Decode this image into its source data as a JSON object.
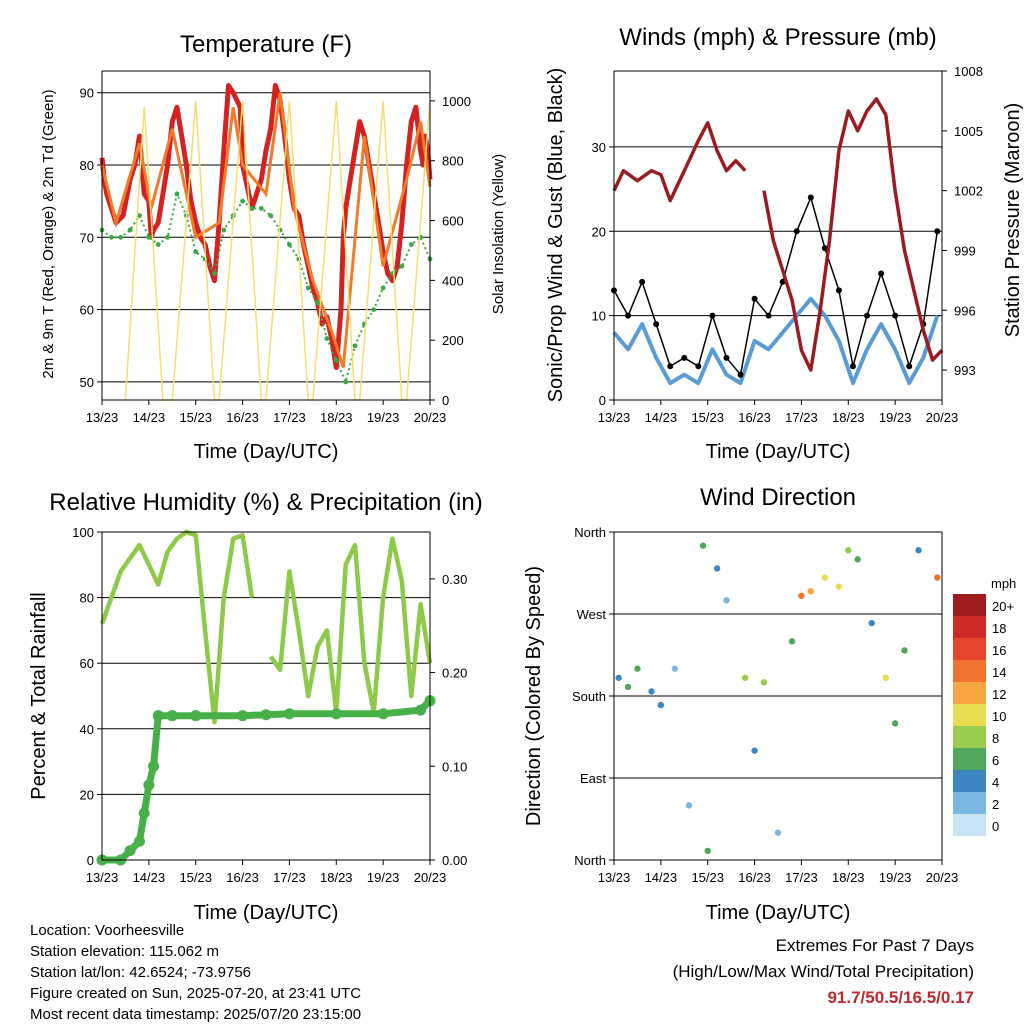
{
  "colors": {
    "temp2m": "#d42222",
    "temp9m": "#f07b2a",
    "dewpoint": "#3aa845",
    "solar": "#f5dd6f",
    "wind": "#5b9bd5",
    "gust": "#000000",
    "pressure": "#9b1c20",
    "rh": "#8ec94a",
    "precip": "#48b048",
    "grid": "#000000",
    "extremes": "#c0282d"
  },
  "panels": {
    "temperature": {
      "title": "Temperature (F)",
      "xlabel": "Time (Day/UTC)",
      "ylabel_left": "2m & 9m T (Red, Orange) & 2m Td (Green)",
      "ylabel_right": "Solar Insolation (Yellow)"
    },
    "winds": {
      "title": "Winds (mph) & Pressure (mb)",
      "xlabel": "Time (Day/UTC)",
      "ylabel_left": "Sonic/Prop Wind & Gust (Blue, Black)",
      "ylabel_right": "Station Pressure (Maroon)"
    },
    "humidity": {
      "title": "Relative Humidity (%) & Precipitation (in)",
      "xlabel": "Time (Day/UTC)",
      "ylabel_left": "Percent & Total Rainfall"
    },
    "direction": {
      "title": "Wind Direction",
      "xlabel": "Time (Day/UTC)",
      "ylabel_left": "Direction (Colored By Speed)",
      "legend_unit": "mph",
      "legend_labels": [
        "20+",
        "18",
        "16",
        "14",
        "12",
        "10",
        "8",
        "6",
        "4",
        "2",
        "0"
      ],
      "legend_colors": [
        "#a01c1c",
        "#cf2a27",
        "#e6452b",
        "#f0732f",
        "#f7a540",
        "#e8dc4f",
        "#98cc4d",
        "#4fa75c",
        "#3c86c2",
        "#7ab6e2",
        "#c6e4f5"
      ]
    }
  },
  "chart_data": [
    {
      "type": "line",
      "title": "Temperature (F)",
      "xlabel": "Time (Day/UTC)",
      "ylabel": "2m & 9m T (Red, Orange) & 2m Td (Green)",
      "y2label": "Solar Insolation (Yellow)",
      "x_ticks": [
        "13/23",
        "14/23",
        "15/23",
        "16/23",
        "17/23",
        "18/23",
        "19/23",
        "20/23"
      ],
      "y_ticks": [
        50,
        60,
        70,
        80,
        90
      ],
      "y2_ticks": [
        0,
        200,
        400,
        600,
        800,
        1000
      ],
      "xlim": [
        0,
        7
      ],
      "ylim": [
        47.5,
        93
      ],
      "y2lim": [
        0,
        1100
      ],
      "grid": true,
      "series": [
        {
          "name": "2m T",
          "axis": "left",
          "x": [
            0,
            0.05,
            0.1,
            0.2,
            0.3,
            0.45,
            0.6,
            0.7,
            0.8,
            0.9,
            1.0,
            1.05,
            1.1,
            1.2,
            1.3,
            1.4,
            1.5,
            1.6,
            1.7,
            1.8,
            1.9,
            2.0,
            2.1,
            2.2,
            2.3,
            2.4,
            2.5,
            2.6,
            2.7,
            2.8,
            2.95,
            3.0,
            3.1,
            3.2,
            3.3,
            3.4,
            3.5,
            3.6,
            3.7,
            3.8,
            3.9,
            4.0,
            4.1,
            4.2,
            4.3,
            4.4,
            4.5,
            4.6,
            4.7,
            4.8,
            4.9,
            5.0,
            5.1,
            5.15,
            5.2,
            5.3,
            5.4,
            5.5,
            5.6,
            5.7,
            5.8,
            5.9,
            6.0,
            6.1,
            6.2,
            6.3,
            6.4,
            6.5,
            6.6,
            6.7,
            6.8,
            6.85,
            6.9,
            6.95,
            7.0
          ],
          "y": [
            81,
            78,
            76,
            74,
            72,
            73,
            78,
            80,
            84,
            76,
            75,
            70,
            71,
            72,
            76,
            80,
            86,
            88,
            84,
            80,
            75,
            72,
            70,
            69,
            66,
            64,
            72,
            82,
            91,
            90,
            88,
            80,
            77,
            74,
            76,
            78,
            82,
            85,
            91,
            89,
            84,
            78,
            74,
            73,
            69,
            66,
            63,
            61,
            58,
            59,
            56,
            52,
            60,
            70,
            74,
            78,
            82,
            86,
            84,
            80,
            76,
            72,
            68,
            65,
            64,
            66,
            72,
            80,
            86,
            88,
            82,
            80,
            84,
            82,
            78
          ]
        },
        {
          "name": "9m T",
          "axis": "left",
          "x": [
            0,
            0.3,
            0.8,
            1.05,
            1.5,
            2.0,
            2.5,
            2.8,
            3.0,
            3.5,
            3.8,
            4.1,
            4.5,
            4.9,
            5.15,
            5.6,
            6.0,
            6.5,
            6.8,
            7.0
          ],
          "y": [
            80,
            72,
            83,
            74,
            85,
            70,
            72,
            88,
            80,
            76,
            90,
            74,
            64,
            57,
            52,
            84,
            66,
            78,
            86,
            77
          ]
        },
        {
          "name": "2m Td",
          "axis": "left",
          "x": [
            0,
            0.2,
            0.4,
            0.6,
            0.8,
            1.0,
            1.2,
            1.4,
            1.6,
            1.8,
            2.0,
            2.2,
            2.4,
            2.6,
            2.8,
            3.0,
            3.2,
            3.4,
            3.6,
            3.8,
            4.0,
            4.2,
            4.4,
            4.6,
            4.8,
            5.0,
            5.2,
            5.4,
            5.6,
            5.8,
            6.0,
            6.2,
            6.4,
            6.6,
            6.8,
            7.0
          ],
          "y": [
            71,
            70,
            70,
            71,
            73,
            70,
            69,
            70,
            76,
            73,
            68,
            67,
            65,
            71,
            73,
            75,
            74,
            74,
            73,
            71,
            69,
            67,
            63,
            61,
            56,
            53,
            50,
            55,
            58,
            60,
            63,
            65,
            66,
            69,
            70,
            67
          ]
        },
        {
          "name": "Solar Insolation",
          "axis": "right",
          "x": [
            0.5,
            0.9,
            1.3,
            1.5,
            2.0,
            2.4,
            2.5,
            3.0,
            3.4,
            3.5,
            4.0,
            4.4,
            4.5,
            5.0,
            5.4,
            5.5,
            6.0,
            6.4,
            6.5,
            7.0
          ],
          "y": [
            0,
            980,
            0,
            0,
            1000,
            0,
            0,
            1000,
            0,
            0,
            1000,
            0,
            0,
            1000,
            0,
            0,
            1000,
            0,
            0,
            1000
          ]
        }
      ]
    },
    {
      "type": "line",
      "title": "Winds (mph) & Pressure (mb)",
      "xlabel": "Time (Day/UTC)",
      "ylabel": "Sonic/Prop Wind & Gust (Blue, Black)",
      "y2label": "Station Pressure (Maroon)",
      "x_ticks": [
        "13/23",
        "14/23",
        "15/23",
        "16/23",
        "17/23",
        "18/23",
        "19/23",
        "20/23"
      ],
      "y_ticks": [
        0,
        10,
        20,
        30
      ],
      "y2_ticks": [
        993,
        996,
        999,
        1002,
        1005,
        1008
      ],
      "xlim": [
        0,
        7
      ],
      "ylim": [
        0,
        39
      ],
      "y2lim": [
        991.5,
        1008
      ],
      "grid": true,
      "series": [
        {
          "name": "Sonic/Prop Wind",
          "axis": "left",
          "x": [
            0,
            0.3,
            0.6,
            0.9,
            1.2,
            1.5,
            1.8,
            2.1,
            2.4,
            2.7,
            3.0,
            3.3,
            3.6,
            3.9,
            4.2,
            4.5,
            4.8,
            5.1,
            5.4,
            5.7,
            6.0,
            6.3,
            6.6,
            6.9
          ],
          "y": [
            8,
            6,
            9,
            5,
            2,
            3,
            2,
            6,
            3,
            2,
            7,
            6,
            8,
            10,
            12,
            10,
            7,
            2,
            6,
            9,
            6,
            2,
            5,
            10
          ]
        },
        {
          "name": "Gust",
          "axis": "left",
          "x": [
            0,
            0.3,
            0.6,
            0.9,
            1.2,
            1.5,
            1.8,
            2.1,
            2.4,
            2.7,
            3.0,
            3.3,
            3.6,
            3.9,
            4.2,
            4.5,
            4.8,
            5.1,
            5.4,
            5.7,
            6.0,
            6.3,
            6.6,
            6.9
          ],
          "y": [
            13,
            10,
            14,
            9,
            4,
            5,
            4,
            10,
            5,
            3,
            12,
            10,
            14,
            20,
            24,
            18,
            13,
            4,
            10,
            15,
            10,
            4,
            9,
            20
          ]
        },
        {
          "name": "Station Pressure",
          "axis": "right",
          "x": [
            0,
            0.2,
            0.5,
            0.8,
            1.0,
            1.2,
            1.4,
            1.6,
            1.8,
            2.0,
            2.2,
            2.4,
            2.6,
            2.8,
            3.0,
            3.2,
            3.4,
            3.6,
            3.8,
            4.0,
            4.2,
            4.4,
            4.6,
            4.8,
            5.0,
            5.2,
            5.4,
            5.6,
            5.8,
            6.0,
            6.2,
            6.4,
            6.6,
            6.8,
            7.0
          ],
          "y": [
            1002,
            1003,
            1002.5,
            1003,
            1002.8,
            1001.5,
            1002.5,
            1003.5,
            1004.5,
            1005.4,
            1004,
            1003,
            1003.5,
            1003,
            null,
            1002,
            999.5,
            998,
            996.5,
            994,
            993,
            996,
            999.5,
            1004,
            1006,
            1005,
            1006,
            1006.6,
            1005.8,
            1002,
            999,
            997,
            995,
            993.5,
            994
          ]
        }
      ]
    },
    {
      "type": "line",
      "title": "Relative Humidity (%) & Precipitation (in)",
      "xlabel": "Time (Day/UTC)",
      "ylabel": "Percent & Total Rainfall",
      "x_ticks": [
        "13/23",
        "14/23",
        "15/23",
        "16/23",
        "17/23",
        "18/23",
        "19/23",
        "20/23"
      ],
      "y_ticks": [
        0,
        20,
        40,
        60,
        80,
        100
      ],
      "y2_ticks": [
        "0.00",
        "0.10",
        "0.20",
        "0.30"
      ],
      "xlim": [
        0,
        7
      ],
      "ylim": [
        0,
        100
      ],
      "y2lim": [
        0,
        0.35
      ],
      "grid": true,
      "series": [
        {
          "name": "Relative Humidity",
          "axis": "left",
          "x": [
            0,
            0.2,
            0.4,
            0.6,
            0.8,
            1.0,
            1.2,
            1.4,
            1.6,
            1.8,
            2.0,
            2.2,
            2.4,
            2.6,
            2.8,
            3.0,
            3.2,
            3.4,
            3.6,
            3.8,
            4.0,
            4.2,
            4.4,
            4.6,
            4.8,
            5.0,
            5.2,
            5.4,
            5.6,
            5.8,
            6.0,
            6.2,
            6.4,
            6.6,
            6.8,
            7.0
          ],
          "y": [
            72,
            80,
            88,
            92,
            96,
            90,
            84,
            94,
            98,
            100,
            99,
            70,
            42,
            80,
            98,
            99,
            80,
            null,
            62,
            58,
            88,
            70,
            50,
            65,
            70,
            45,
            90,
            96,
            60,
            45,
            80,
            98,
            85,
            50,
            78,
            60
          ]
        },
        {
          "name": "Total Precipitation",
          "axis": "right",
          "x": [
            0,
            0.4,
            0.6,
            0.8,
            0.9,
            1.0,
            1.1,
            1.2,
            1.5,
            2.0,
            3.0,
            3.5,
            4.0,
            5.0,
            6.0,
            6.8,
            7.0
          ],
          "y": [
            0,
            0,
            0.01,
            0.02,
            0.05,
            0.08,
            0.1,
            0.154,
            0.154,
            0.154,
            0.154,
            0.155,
            0.156,
            0.156,
            0.156,
            0.16,
            0.17
          ]
        }
      ]
    },
    {
      "type": "scatter",
      "title": "Wind Direction",
      "xlabel": "Time (Day/UTC)",
      "ylabel": "Direction (Colored By Speed)",
      "x_ticks": [
        "13/23",
        "14/23",
        "15/23",
        "16/23",
        "17/23",
        "18/23",
        "19/23",
        "20/23"
      ],
      "y_ticks": [
        "North",
        "East",
        "South",
        "West",
        "North"
      ],
      "xlim": [
        0,
        7
      ],
      "ylim": [
        0,
        360
      ],
      "grid": true,
      "legend": "right",
      "series": [
        {
          "name": "Direction",
          "x": [
            0.1,
            0.3,
            0.5,
            0.8,
            1.0,
            1.3,
            1.6,
            1.9,
            2.0,
            2.2,
            2.4,
            2.8,
            3.0,
            3.2,
            3.5,
            3.8,
            4.0,
            4.2,
            4.5,
            4.8,
            5.0,
            5.2,
            5.5,
            5.8,
            6.0,
            6.2,
            6.5,
            6.9
          ],
          "y": [
            200,
            190,
            210,
            185,
            170,
            210,
            60,
            345,
            10,
            320,
            285,
            200,
            120,
            195,
            30,
            240,
            290,
            295,
            310,
            300,
            340,
            330,
            260,
            200,
            150,
            230,
            340,
            310
          ],
          "speed": [
            4,
            5,
            6,
            4,
            3,
            2,
            1,
            5,
            6,
            3,
            2,
            7,
            4,
            8,
            2,
            6,
            14,
            12,
            10,
            9,
            8,
            6,
            3,
            10,
            5,
            6,
            4,
            14
          ]
        }
      ]
    }
  ],
  "footer": {
    "location": "Location: Voorheesville",
    "elevation": "Station elevation: 115.062 m",
    "latlon": "Station lat/lon: 42.6524; -73.9756",
    "created": "Figure created on Sun, 2025-07-20, at 23:41 UTC",
    "recent": "Most recent data timestamp: 2025/07/20 23:15:00"
  },
  "extremes": {
    "heading": "Extremes For Past 7 Days",
    "subheading": "(High/Low/Max Wind/Total Precipitation)",
    "values": "91.7/50.5/16.5/0.17"
  }
}
